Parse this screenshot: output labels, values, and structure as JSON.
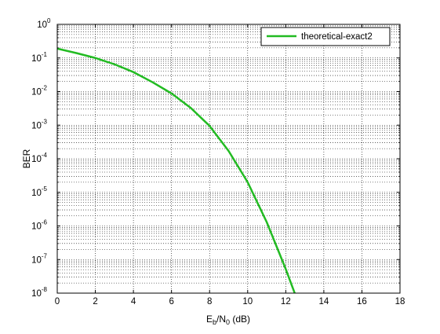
{
  "chart_data": {
    "type": "line",
    "xlabel": {
      "main": "E",
      "sub1": "b",
      "mid": "/N",
      "sub2": "0",
      "tail": " (dB)"
    },
    "ylabel": "BER",
    "xlim": [
      0,
      18
    ],
    "ylim": [
      1e-08,
      1
    ],
    "yscale": "log",
    "grid": true,
    "legend_position": "top-right",
    "x_ticks": [
      "0",
      "2",
      "4",
      "6",
      "8",
      "10",
      "12",
      "14",
      "16",
      "18"
    ],
    "y_ticks": [
      {
        "base": "10",
        "exp": "0"
      },
      {
        "base": "10",
        "exp": "-1"
      },
      {
        "base": "10",
        "exp": "-2"
      },
      {
        "base": "10",
        "exp": "-3"
      },
      {
        "base": "10",
        "exp": "-4"
      },
      {
        "base": "10",
        "exp": "-5"
      },
      {
        "base": "10",
        "exp": "-6"
      },
      {
        "base": "10",
        "exp": "-7"
      },
      {
        "base": "10",
        "exp": "-8"
      }
    ],
    "series": [
      {
        "name": "theoretical-exact2",
        "color": "#22bb22",
        "x": [
          0,
          1,
          2,
          3,
          4,
          5,
          6,
          7,
          8,
          9,
          10,
          11,
          12,
          12.5
        ],
        "y": [
          0.19,
          0.14,
          0.1,
          0.065,
          0.038,
          0.019,
          0.0088,
          0.0033,
          0.00095,
          0.00017,
          2e-05,
          1.3e-06,
          5.2e-08,
          9e-09
        ]
      }
    ]
  }
}
